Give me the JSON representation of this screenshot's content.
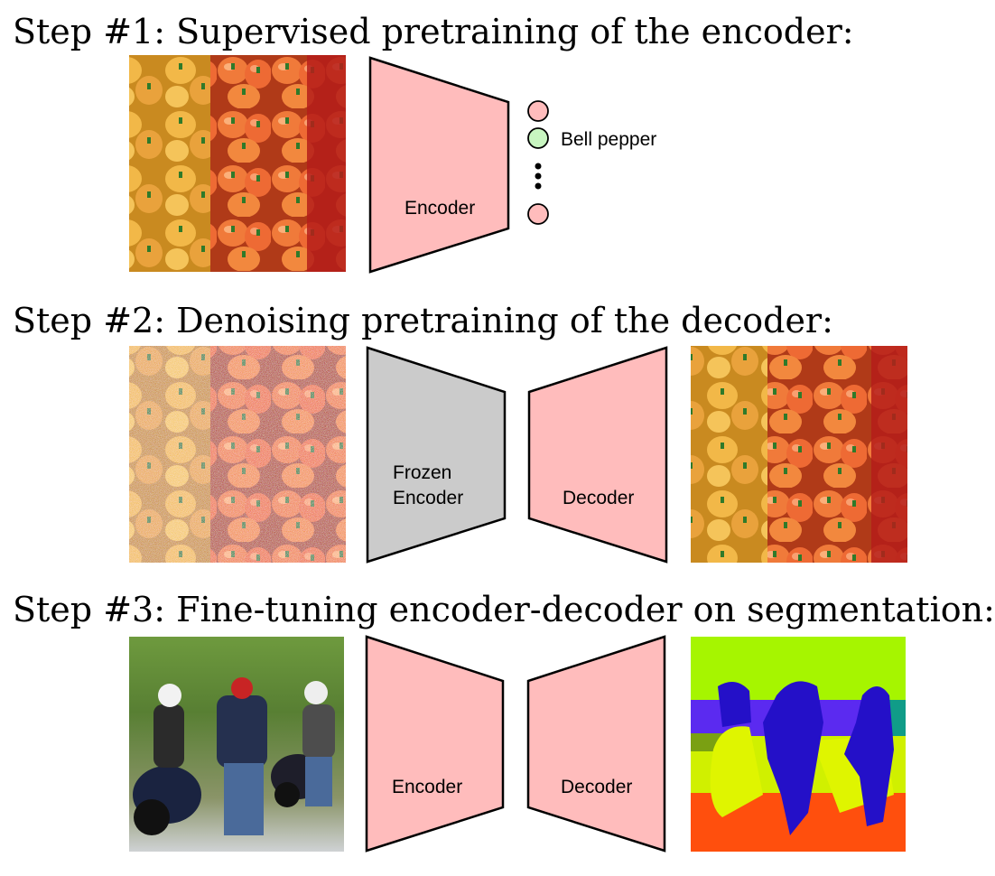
{
  "steps": [
    {
      "heading": "Step #1: Supervised pretraining of the encoder:",
      "encoder_label": "Encoder",
      "class_label": "Bell pepper"
    },
    {
      "heading": "Step #2: Denoising pretraining of the decoder:",
      "encoder_label_line1": "Frozen",
      "encoder_label_line2": "Encoder",
      "decoder_label": "Decoder"
    },
    {
      "heading": "Step #3: Fine-tuning encoder-decoder on segmentation:",
      "encoder_label": "Encoder",
      "decoder_label": "Decoder"
    }
  ],
  "colors": {
    "trainable": "#ffbcbc",
    "frozen": "#cbcbcb",
    "class_active": "#c8f5c0",
    "class_inactive": "#ffbcbc"
  }
}
